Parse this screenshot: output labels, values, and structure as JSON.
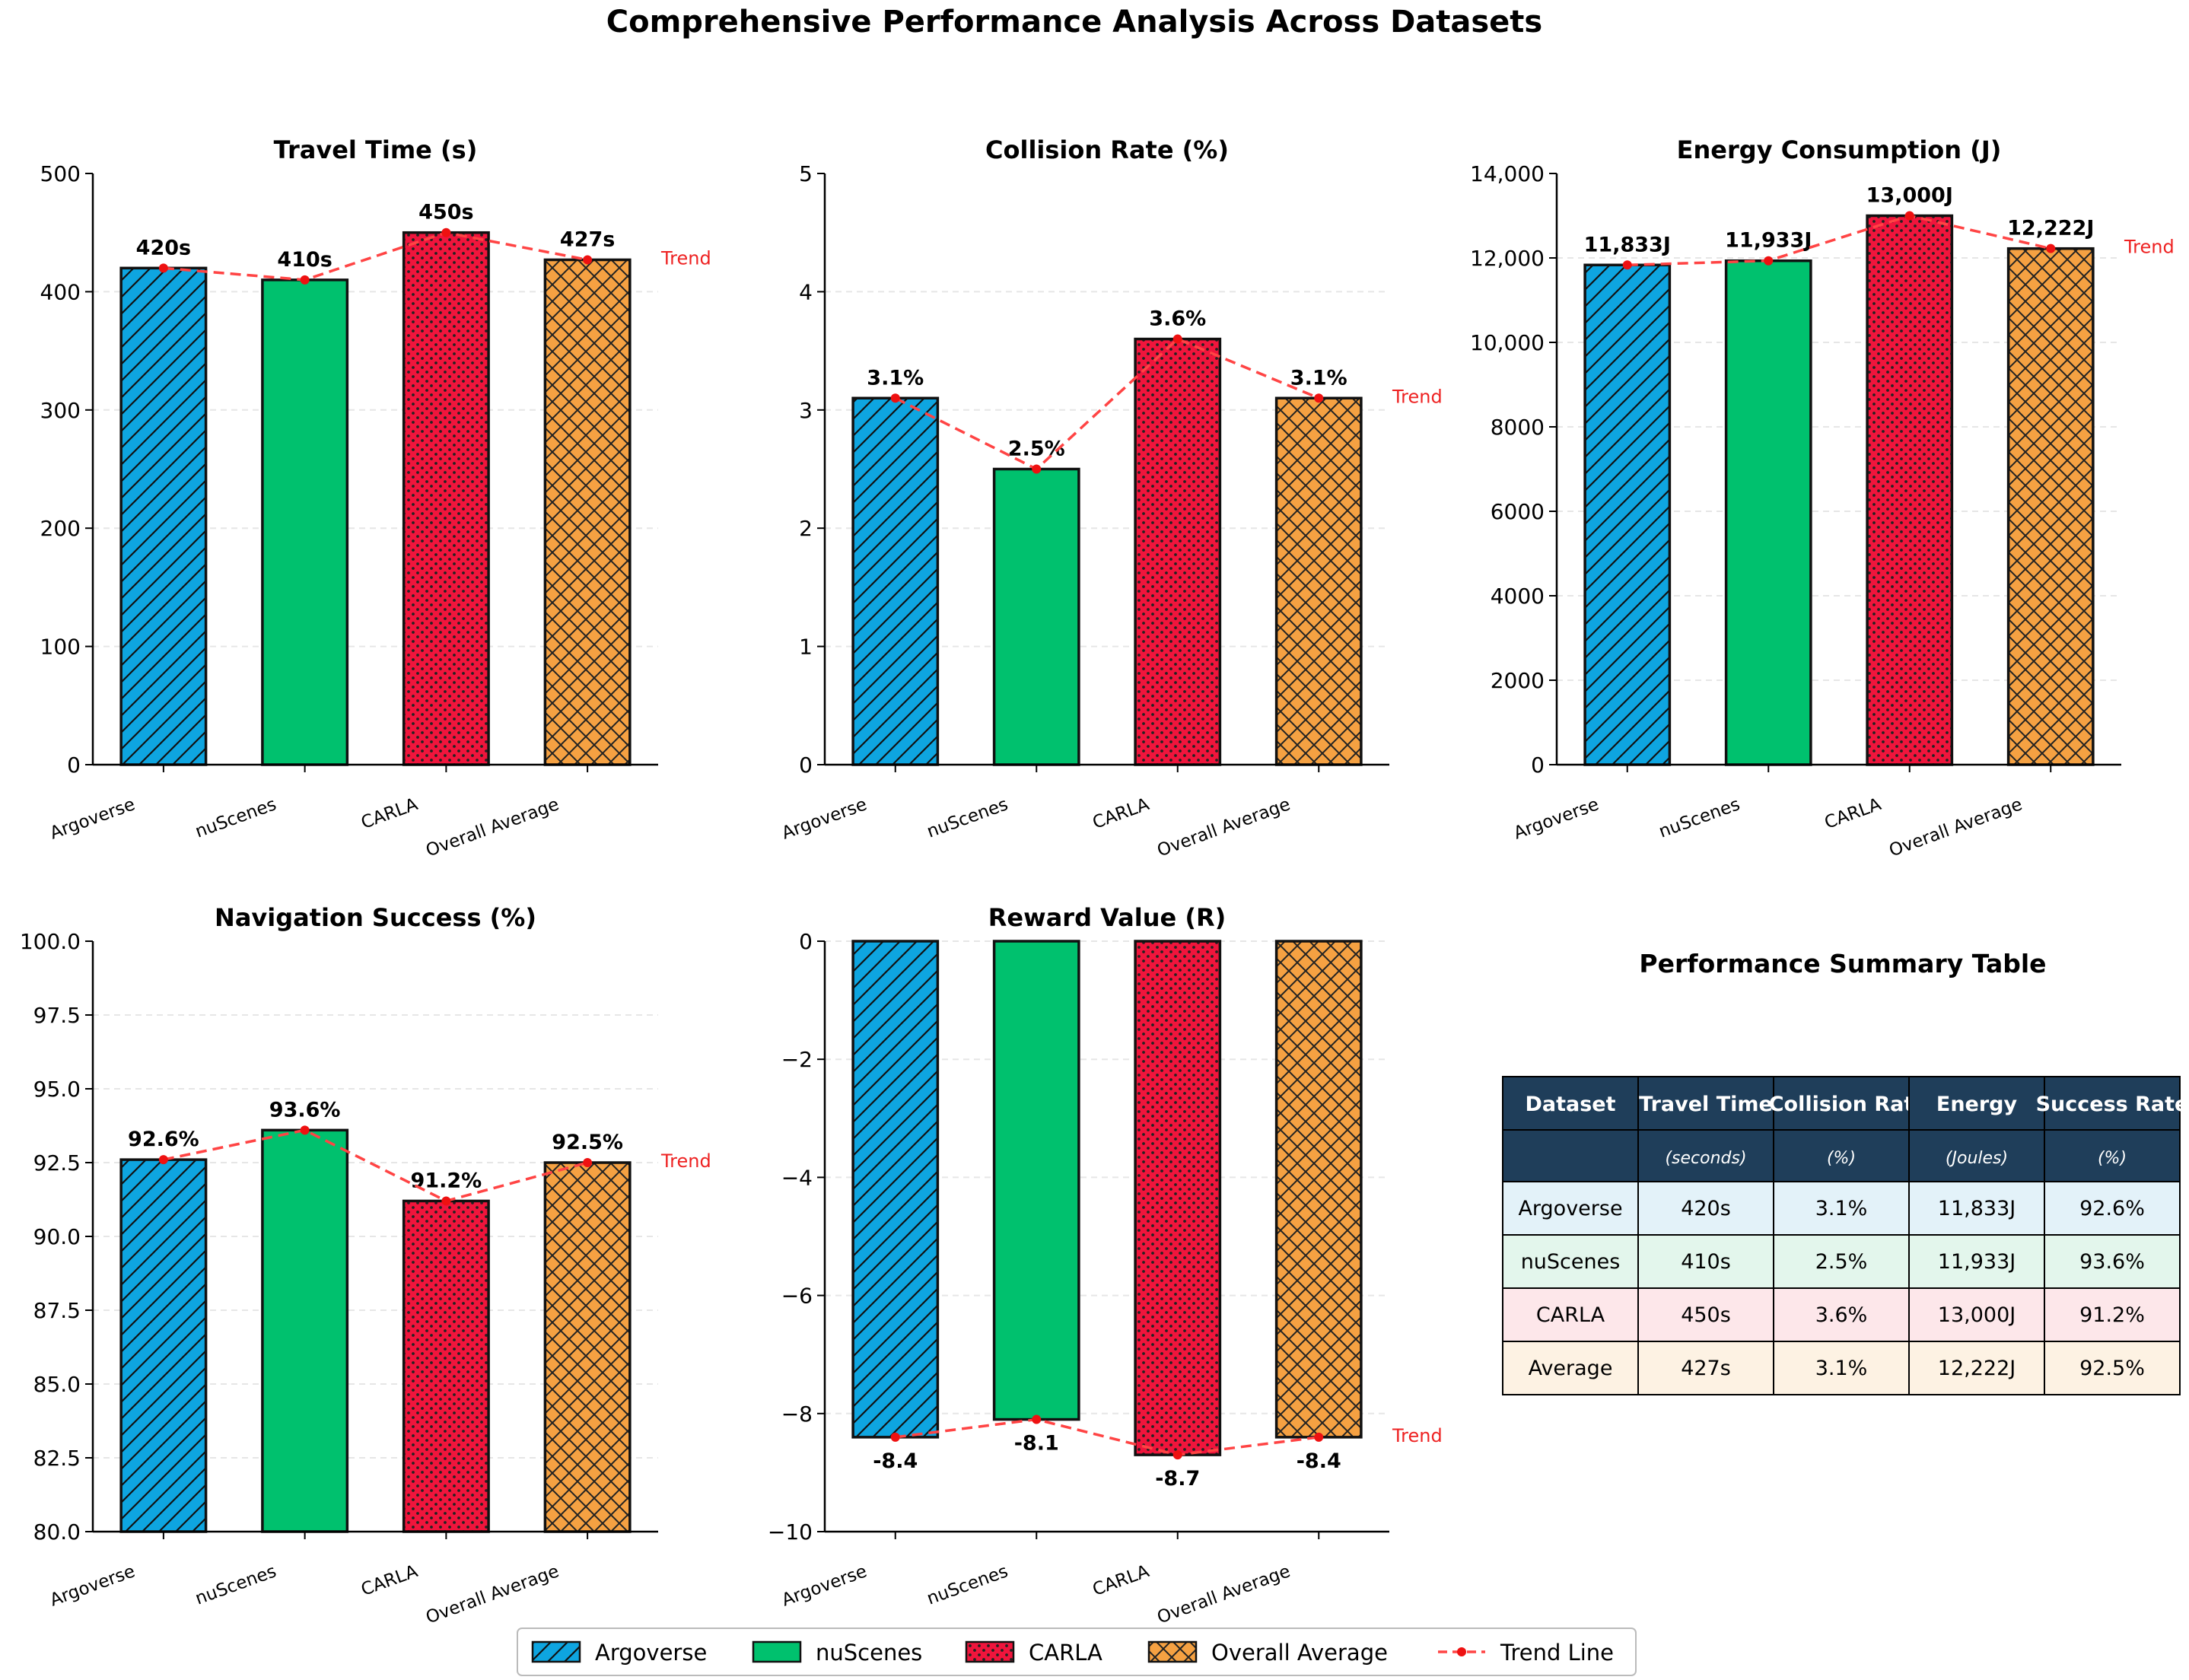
{
  "suptitle": "Comprehensive Performance Analysis Across Datasets",
  "colors": {
    "argoverse": "#0ea5e0",
    "nuscenes": "#00c16e",
    "carla": "#f0153c",
    "average": "#f5a142",
    "trend": "#ff4444",
    "table_header": "#1f3e5a",
    "row_argoverse": "#e3f2f9",
    "row_nuscenes": "#e3f6ec",
    "row_carla": "#fde7ea",
    "row_average": "#fdf2e3"
  },
  "chart_data": [
    {
      "id": "travel",
      "type": "bar",
      "title": "Travel Time (s)",
      "categories": [
        "Argoverse",
        "nuScenes",
        "CARLA",
        "Overall Average"
      ],
      "values": [
        420,
        410,
        450,
        427
      ],
      "labels": [
        "420s",
        "410s",
        "450s",
        "427s"
      ],
      "ylim": [
        0,
        500
      ],
      "yticks": [
        0,
        100,
        200,
        300,
        400,
        500
      ],
      "ytick_labels": [
        "0",
        "100",
        "200",
        "300",
        "400",
        "500"
      ],
      "trend_label": "Trend"
    },
    {
      "id": "collision",
      "type": "bar",
      "title": "Collision Rate (%)",
      "categories": [
        "Argoverse",
        "nuScenes",
        "CARLA",
        "Overall Average"
      ],
      "values": [
        3.1,
        2.5,
        3.6,
        3.1
      ],
      "labels": [
        "3.1%",
        "2.5%",
        "3.6%",
        "3.1%"
      ],
      "ylim": [
        0,
        5
      ],
      "yticks": [
        0,
        1,
        2,
        3,
        4,
        5
      ],
      "ytick_labels": [
        "0",
        "1",
        "2",
        "3",
        "4",
        "5"
      ],
      "trend_label": "Trend"
    },
    {
      "id": "energy",
      "type": "bar",
      "title": "Energy Consumption (J)",
      "categories": [
        "Argoverse",
        "nuScenes",
        "CARLA",
        "Overall Average"
      ],
      "values": [
        11833,
        11933,
        13000,
        12222
      ],
      "labels": [
        "11,833J",
        "11,933J",
        "13,000J",
        "12,222J"
      ],
      "ylim": [
        0,
        14000
      ],
      "yticks": [
        0,
        2000,
        4000,
        6000,
        8000,
        10000,
        12000,
        14000
      ],
      "ytick_labels": [
        "0",
        "2000",
        "4000",
        "6000",
        "8000",
        "10,000",
        "12,000",
        "14,000"
      ],
      "trend_label": "Trend"
    },
    {
      "id": "success",
      "type": "bar",
      "title": "Navigation Success (%)",
      "categories": [
        "Argoverse",
        "nuScenes",
        "CARLA",
        "Overall Average"
      ],
      "values": [
        92.6,
        93.6,
        91.2,
        92.5
      ],
      "labels": [
        "92.6%",
        "93.6%",
        "91.2%",
        "92.5%"
      ],
      "ylim": [
        80,
        100
      ],
      "yticks": [
        80,
        82.5,
        85,
        87.5,
        90,
        92.5,
        95,
        97.5,
        100
      ],
      "ytick_labels": [
        "80.0",
        "82.5",
        "85.0",
        "87.5",
        "90.0",
        "92.5",
        "95.0",
        "97.5",
        "100.0"
      ],
      "trend_label": "Trend"
    },
    {
      "id": "reward",
      "type": "bar",
      "title": "Reward Value (R)",
      "categories": [
        "Argoverse",
        "nuScenes",
        "CARLA",
        "Overall Average"
      ],
      "values": [
        -8.4,
        -8.1,
        -8.7,
        -8.4
      ],
      "labels": [
        "-8.4",
        "-8.1",
        "-8.7",
        "-8.4"
      ],
      "ylim": [
        -10,
        0
      ],
      "yticks": [
        -10,
        -8,
        -6,
        -4,
        -2,
        0
      ],
      "ytick_labels": [
        "−10",
        "−8",
        "−6",
        "−4",
        "−2",
        "0"
      ],
      "trend_label": "Trend"
    }
  ],
  "legend": {
    "items": [
      {
        "label": "Argoverse",
        "key": "argoverse",
        "hatch": "diag"
      },
      {
        "label": "nuScenes",
        "key": "nuscenes",
        "hatch": "none"
      },
      {
        "label": "CARLA",
        "key": "carla",
        "hatch": "dots"
      },
      {
        "label": "Overall Average",
        "key": "average",
        "hatch": "cross"
      },
      {
        "label": "Trend Line",
        "key": "trend",
        "hatch": "line"
      }
    ]
  },
  "table": {
    "title": "Performance Summary Table",
    "headers": [
      "Dataset",
      "Travel Time",
      "Collision Rat",
      "Energy",
      "Success Rate"
    ],
    "units": [
      "",
      "(seconds)",
      "(%)",
      "(Joules)",
      "(%)"
    ],
    "rows": [
      {
        "key": "row_argoverse",
        "cells": [
          "Argoverse",
          "420s",
          "3.1%",
          "11,833J",
          "92.6%"
        ]
      },
      {
        "key": "row_nuscenes",
        "cells": [
          "nuScenes",
          "410s",
          "2.5%",
          "11,933J",
          "93.6%"
        ]
      },
      {
        "key": "row_carla",
        "cells": [
          "CARLA",
          "450s",
          "3.6%",
          "13,000J",
          "91.2%"
        ]
      },
      {
        "key": "row_average",
        "cells": [
          "Average",
          "427s",
          "3.1%",
          "12,222J",
          "92.5%"
        ]
      }
    ]
  }
}
